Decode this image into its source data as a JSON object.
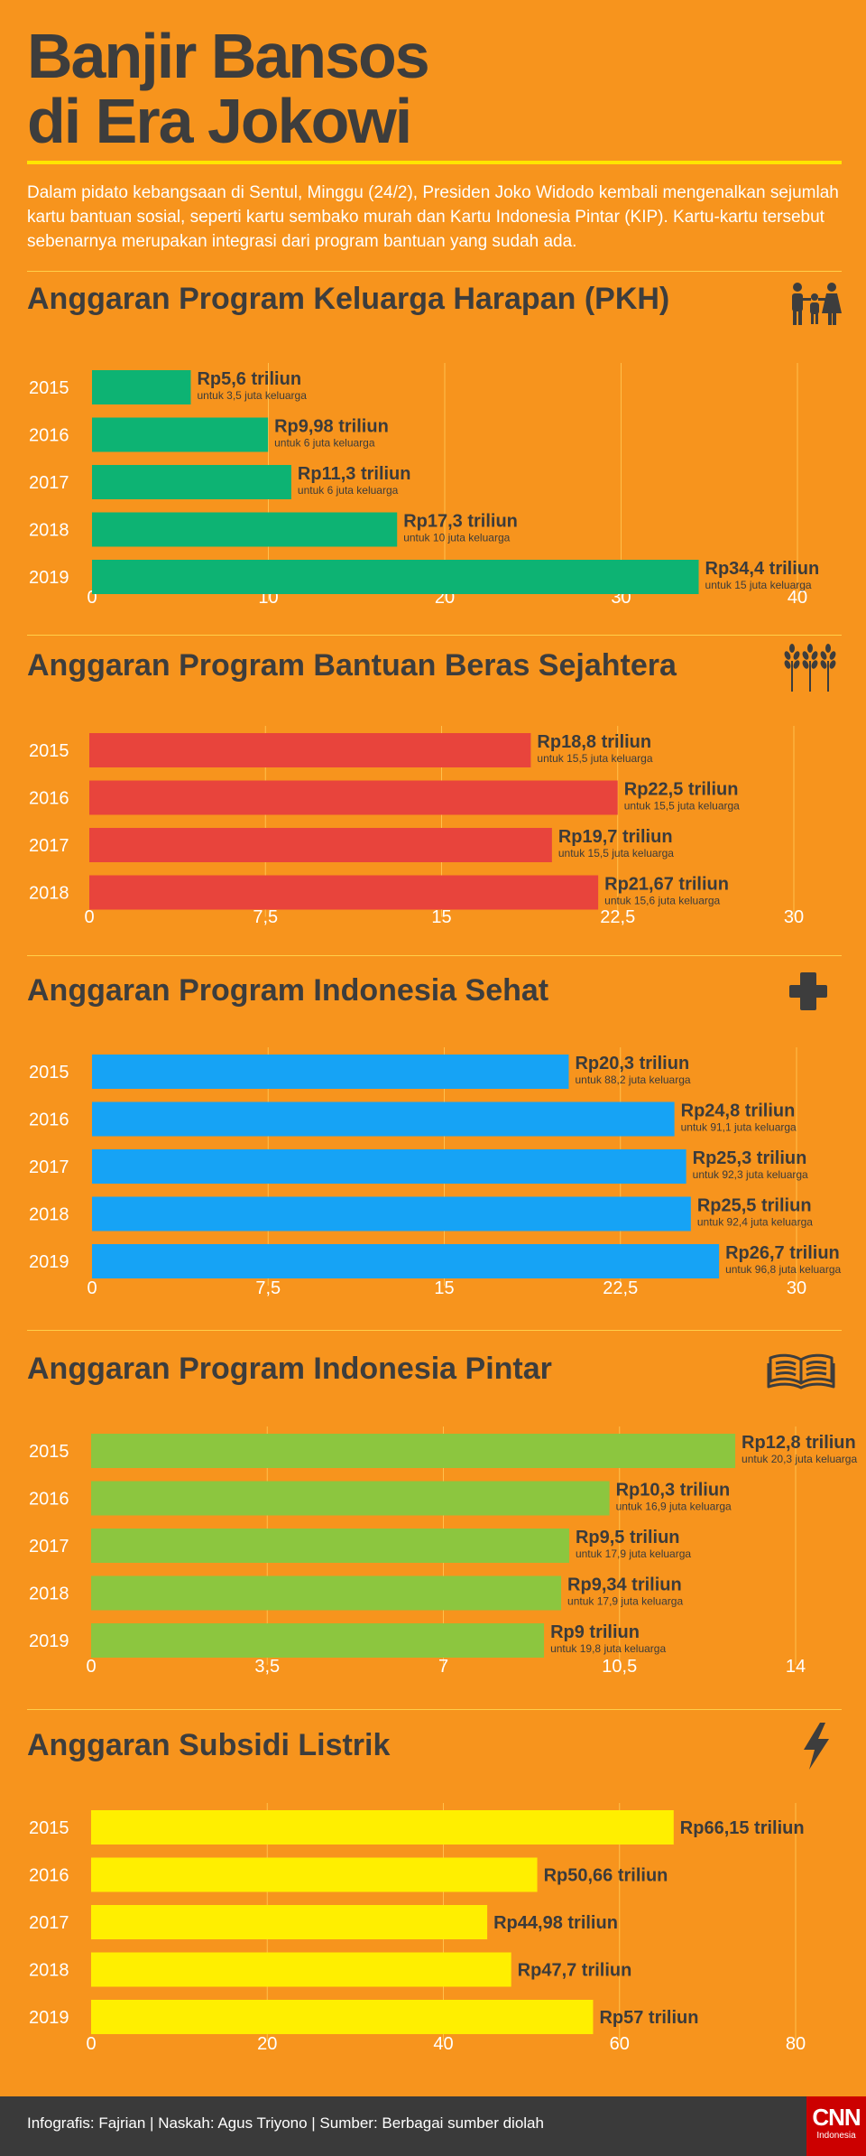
{
  "header": {
    "title_line1": "Banjir Bansos",
    "title_line2": "di Era Jokowi",
    "intro": "Dalam pidato kebangsaan di Sentul, Minggu (24/2), Presiden Joko Widodo kembali mengenalkan sejumlah kartu bantuan sosial, seperti kartu sembako murah dan Kartu Indonesia Pintar (KIP). Kartu-kartu tersebut sebenarnya merupakan integrasi dari program bantuan yang sudah ada."
  },
  "colors": {
    "background": "#f7941d",
    "title": "#3d3d3d",
    "accent_rule": "#ffe500",
    "gridline": "#ffc04d",
    "year_text": "#ffffff",
    "footer_bg": "#3a3a3a",
    "cnn_red": "#cc0000"
  },
  "chart_data": [
    {
      "type": "bar",
      "orientation": "horizontal",
      "title": "Anggaran Program Keluarga Harapan (PKH)",
      "icon": "family-icon",
      "color": "#0db373",
      "categories": [
        "2015",
        "2016",
        "2017",
        "2018",
        "2019"
      ],
      "values": [
        5.6,
        9.98,
        11.3,
        17.3,
        34.4
      ],
      "value_labels": [
        "Rp5,6 triliun",
        "Rp9,98 triliun",
        "Rp11,3 triliun",
        "Rp17,3 triliun",
        "Rp34,4 triliun"
      ],
      "sub_labels": [
        "untuk 3,5 juta keluarga",
        "untuk 6 juta keluarga",
        "untuk 6 juta keluarga",
        "untuk 10 juta keluarga",
        "untuk 15 juta keluarga"
      ],
      "xlim": [
        0,
        40
      ],
      "ticks": [
        0,
        10,
        20,
        30,
        40
      ],
      "tick_labels": [
        "0",
        "10",
        "20",
        "30",
        "40"
      ],
      "unit": "triliun rupiah"
    },
    {
      "type": "bar",
      "orientation": "horizontal",
      "title": "Anggaran Program Bantuan Beras Sejahtera",
      "icon": "wheat-icon",
      "color": "#e8443c",
      "categories": [
        "2015",
        "2016",
        "2017",
        "2018"
      ],
      "values": [
        18.8,
        22.5,
        19.7,
        21.67
      ],
      "value_labels": [
        "Rp18,8 triliun",
        "Rp22,5 triliun",
        "Rp19,7 triliun",
        "Rp21,67 triliun"
      ],
      "sub_labels": [
        "untuk 15,5 juta keluarga",
        "untuk 15,5 juta keluarga",
        "untuk 15,5 juta keluarga",
        "untuk 15,6 juta keluarga"
      ],
      "xlim": [
        0,
        30
      ],
      "ticks": [
        0,
        7.5,
        15,
        22.5,
        30
      ],
      "tick_labels": [
        "0",
        "7,5",
        "15",
        "22,5",
        "30"
      ],
      "unit": "triliun rupiah"
    },
    {
      "type": "bar",
      "orientation": "horizontal",
      "title": "Anggaran  Program Indonesia Sehat",
      "icon": "health-cross-icon",
      "color": "#16a3f5",
      "categories": [
        "2015",
        "2016",
        "2017",
        "2018",
        "2019"
      ],
      "values": [
        20.3,
        24.8,
        25.3,
        25.5,
        26.7
      ],
      "value_labels": [
        "Rp20,3 triliun",
        "Rp24,8 triliun",
        "Rp25,3 triliun",
        "Rp25,5 triliun",
        "Rp26,7 triliun"
      ],
      "sub_labels": [
        "untuk 88,2 juta keluarga",
        "untuk 91,1 juta keluarga",
        "untuk 92,3 juta keluarga",
        "untuk 92,4 juta keluarga",
        "untuk 96,8 juta keluarga"
      ],
      "xlim": [
        0,
        30
      ],
      "ticks": [
        0,
        7.5,
        15,
        22.5,
        30
      ],
      "tick_labels": [
        "0",
        "7,5",
        "15",
        "22,5",
        "30"
      ],
      "unit": "triliun rupiah"
    },
    {
      "type": "bar",
      "orientation": "horizontal",
      "title": "Anggaran  Program Indonesia Pintar",
      "icon": "open-book-icon",
      "color": "#8cc63f",
      "categories": [
        "2015",
        "2016",
        "2017",
        "2018",
        "2019"
      ],
      "values": [
        12.8,
        10.3,
        9.5,
        9.34,
        9
      ],
      "value_labels": [
        "Rp12,8 triliun",
        "Rp10,3 triliun",
        "Rp9,5 triliun",
        "Rp9,34 triliun",
        "Rp9 triliun"
      ],
      "sub_labels": [
        "untuk 20,3 juta keluarga",
        "untuk 16,9 juta keluarga",
        "untuk 17,9 juta keluarga",
        "untuk 17,9 juta keluarga",
        "untuk 19,8 juta keluarga"
      ],
      "xlim": [
        0,
        14
      ],
      "ticks": [
        0,
        3.5,
        7,
        10.5,
        14
      ],
      "tick_labels": [
        "0",
        "3,5",
        "7",
        "10,5",
        "14"
      ],
      "unit": "triliun rupiah"
    },
    {
      "type": "bar",
      "orientation": "horizontal",
      "title": "Anggaran  Subsidi Listrik",
      "icon": "lightning-icon",
      "color": "#ffef00",
      "categories": [
        "2015",
        "2016",
        "2017",
        "2018",
        "2019"
      ],
      "values": [
        66.15,
        50.66,
        44.98,
        47.7,
        57
      ],
      "value_labels": [
        "Rp66,15 triliun",
        "Rp50,66 triliun",
        "Rp44,98 triliun",
        "Rp47,7 triliun",
        "Rp57 triliun"
      ],
      "sub_labels": [],
      "xlim": [
        0,
        80
      ],
      "ticks": [
        0,
        20,
        40,
        60,
        80
      ],
      "tick_labels": [
        "0",
        "20",
        "40",
        "60",
        "80"
      ],
      "unit": "triliun rupiah"
    }
  ],
  "footer": {
    "credits": "Infografis: Fajrian | Naskah: Agus Triyono | Sumber: Berbagai sumber diolah",
    "logo_mark": "CNN",
    "logo_sub": "Indonesia"
  }
}
